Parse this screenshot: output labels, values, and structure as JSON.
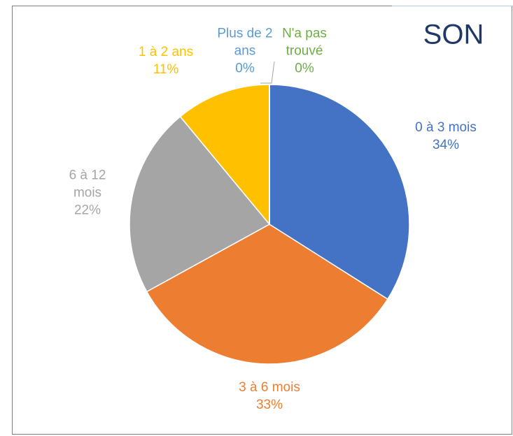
{
  "chart_data": {
    "type": "pie",
    "title": "SON",
    "categories": [
      "0 à 3 mois",
      "3 à 6 mois",
      "6 à 12 mois",
      "1 à 2 ans",
      "Plus de 2 ans",
      "N'a pas trouvé"
    ],
    "values": [
      34,
      33,
      22,
      11,
      0,
      0
    ],
    "value_labels": [
      "34%",
      "33%",
      "22%",
      "11%",
      "0%",
      "0%"
    ],
    "colors": [
      "#4472c4",
      "#ed7d31",
      "#a5a5a5",
      "#ffc000",
      "#5b9bd5",
      "#70ad47"
    ]
  }
}
